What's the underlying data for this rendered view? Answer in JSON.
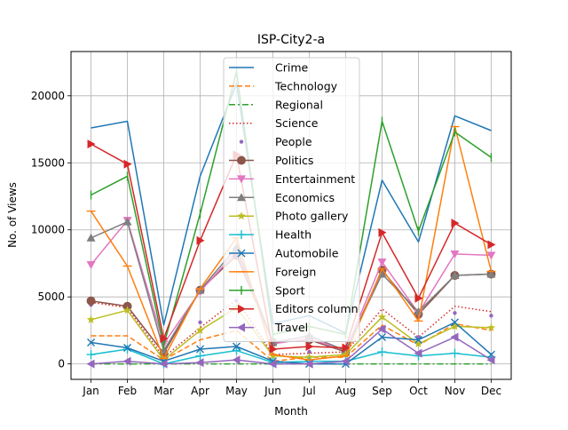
{
  "chart_data": {
    "type": "line",
    "title": "ISP-City2-a",
    "xlabel": "Month",
    "ylabel": "No. of Views",
    "categories": [
      "Jan",
      "Feb",
      "Mar",
      "Apr",
      "May",
      "Jun",
      "Jul",
      "Aug",
      "Sep",
      "Oct",
      "Nov",
      "Dec"
    ],
    "ylim": [
      -1150,
      23300
    ],
    "yticks": [
      0,
      5000,
      10000,
      15000,
      20000
    ],
    "ytick_labels": [
      "0",
      "5000",
      "10000",
      "15000",
      "20000"
    ],
    "grid": true,
    "legend_position": "upper center",
    "series": [
      {
        "name": "Crime",
        "color": "#1f77b4",
        "dash": "solid",
        "marker": "none",
        "values": [
          17600,
          18100,
          2900,
          14000,
          20900,
          3000,
          3600,
          2300,
          13700,
          9100,
          18500,
          17400
        ]
      },
      {
        "name": "Technology",
        "color": "#ff7f0e",
        "dash": "dashed",
        "marker": "none",
        "values": [
          2100,
          2100,
          300,
          1800,
          2500,
          200,
          500,
          500,
          2900,
          1400,
          3000,
          2500
        ]
      },
      {
        "name": "Regional",
        "color": "#2ca02c",
        "dash": "dashdot",
        "marker": "none",
        "values": [
          0,
          0,
          0,
          0,
          0,
          0,
          0,
          0,
          0,
          0,
          0,
          0
        ]
      },
      {
        "name": "Science",
        "color": "#d62728",
        "dash": "dotted",
        "marker": "none",
        "values": [
          4600,
          4200,
          500,
          2700,
          4800,
          700,
          800,
          900,
          4100,
          2000,
          4300,
          3900
        ]
      },
      {
        "name": "People",
        "color": "#9467bd",
        "dash": "none",
        "marker": "point",
        "values": [
          4400,
          4300,
          1000,
          3100,
          4700,
          700,
          900,
          900,
          2700,
          2000,
          3800,
          3600
        ]
      },
      {
        "name": "Politics",
        "color": "#8c564b",
        "dash": "solid",
        "marker": "circle",
        "values": [
          4700,
          4300,
          800,
          5500,
          8100,
          1600,
          1800,
          900,
          7000,
          3700,
          6600,
          6700
        ]
      },
      {
        "name": "Entertainment",
        "color": "#e377c2",
        "dash": "solid",
        "marker": "triangle_down",
        "values": [
          7400,
          10700,
          1500,
          5400,
          8400,
          1500,
          1900,
          1000,
          7600,
          3800,
          8200,
          8100
        ]
      },
      {
        "name": "Economics",
        "color": "#7f7f7f",
        "dash": "solid",
        "marker": "triangle_up",
        "values": [
          9400,
          10600,
          1000,
          5500,
          8700,
          1600,
          2100,
          1000,
          6700,
          3900,
          6600,
          6700
        ]
      },
      {
        "name": "Photo gallery",
        "color": "#bcbd22",
        "dash": "solid",
        "marker": "star",
        "values": [
          3300,
          4000,
          300,
          2500,
          4200,
          600,
          500,
          700,
          3500,
          1500,
          2800,
          2700
        ]
      },
      {
        "name": "Health",
        "color": "#17becf",
        "dash": "solid",
        "marker": "plus",
        "values": [
          700,
          1100,
          0,
          600,
          1000,
          100,
          200,
          200,
          900,
          600,
          800,
          500
        ]
      },
      {
        "name": "Automobile",
        "color": "#1f77b4",
        "dash": "solid",
        "marker": "x",
        "values": [
          1600,
          1200,
          200,
          1100,
          1300,
          200,
          0,
          0,
          2000,
          1800,
          3100,
          700
        ]
      },
      {
        "name": "Foreign",
        "color": "#ff7f0e",
        "dash": "solid",
        "marker": "hline",
        "values": [
          11400,
          7300,
          400,
          5600,
          9400,
          700,
          300,
          600,
          7100,
          3200,
          17700,
          6900
        ]
      },
      {
        "name": "Sport",
        "color": "#2ca02c",
        "dash": "solid",
        "marker": "vline",
        "values": [
          12600,
          14000,
          1400,
          11200,
          21800,
          2200,
          2800,
          2200,
          18100,
          9900,
          17300,
          15400
        ]
      },
      {
        "name": "Editors column",
        "color": "#d62728",
        "dash": "solid",
        "marker": "triangle_right",
        "values": [
          16400,
          14900,
          1900,
          9200,
          15600,
          1100,
          1300,
          1200,
          9800,
          4900,
          10500,
          8900
        ]
      },
      {
        "name": "Travel",
        "color": "#9467bd",
        "dash": "solid",
        "marker": "triangle_left",
        "values": [
          0,
          200,
          0,
          100,
          300,
          0,
          0,
          200,
          2600,
          800,
          2000,
          300
        ]
      }
    ]
  }
}
